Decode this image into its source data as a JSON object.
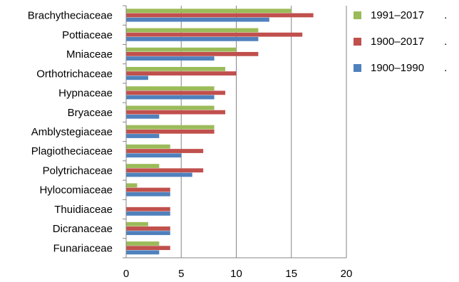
{
  "chart_data": {
    "type": "bar",
    "orientation": "horizontal",
    "title": "",
    "xlabel": "",
    "ylabel": "",
    "categories": [
      "Brachytheciaceae",
      "Pottiaceae",
      "Mniaceae",
      "Orthotrichaceae",
      "Hypnaceae",
      "Bryaceae",
      "Amblystegiaceae",
      "Plagiotheciaceae",
      "Polytrichaceae",
      "Hylocomiaceae",
      "Thuidiaceae",
      "Dicranaceae",
      "Funariaceae"
    ],
    "series": [
      {
        "name": "1991–2017",
        "color": "#9bbb59",
        "values": [
          15,
          12,
          10,
          9,
          8,
          8,
          8,
          4,
          3,
          1,
          0,
          2,
          3
        ]
      },
      {
        "name": "1900–2017",
        "color": "#c0504d",
        "values": [
          17,
          16,
          12,
          10,
          9,
          9,
          8,
          7,
          7,
          4,
          4,
          4,
          4
        ]
      },
      {
        "name": "1900–1990",
        "color": "#4f81bd",
        "values": [
          13,
          12,
          8,
          2,
          8,
          3,
          3,
          5,
          6,
          4,
          4,
          4,
          3
        ]
      }
    ],
    "xlim": [
      0,
      20
    ],
    "xticks": [
      "0",
      "5",
      "10",
      "15",
      "20"
    ],
    "grid": true,
    "legend_position": "right"
  },
  "legend": {
    "marker": "."
  }
}
